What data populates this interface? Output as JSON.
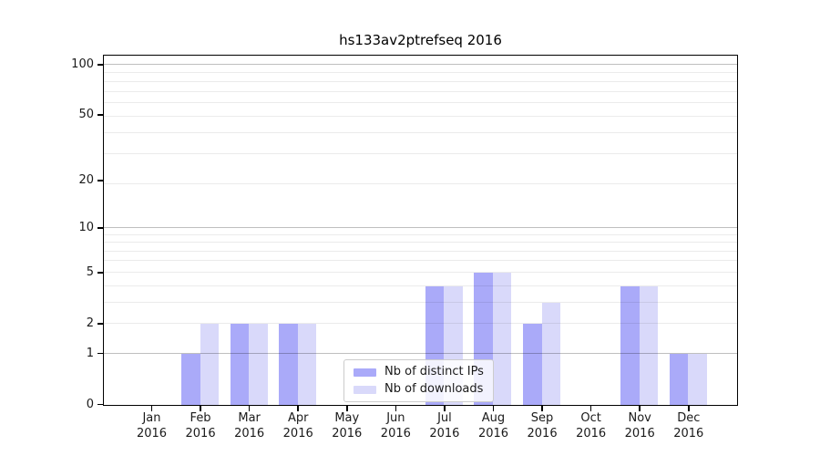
{
  "chart_data": {
    "type": "bar",
    "title": "hs133av2ptrefseq 2016",
    "categories": [
      "Jan",
      "Feb",
      "Mar",
      "Apr",
      "May",
      "Jun",
      "Jul",
      "Aug",
      "Sep",
      "Oct",
      "Nov",
      "Dec"
    ],
    "x_tick_year_line": "2016",
    "series": [
      {
        "name": "Nb of distinct IPs",
        "color": "#aaaaf9",
        "values": [
          0,
          1,
          2,
          2,
          0,
          0,
          4,
          5,
          2,
          0,
          4,
          1
        ]
      },
      {
        "name": "Nb of downloads",
        "color": "#d9d9fa",
        "values": [
          0,
          2,
          2,
          2,
          0,
          0,
          4,
          5,
          3,
          0,
          4,
          1
        ]
      }
    ],
    "y_ticks": [
      100,
      50,
      20,
      10,
      5,
      2,
      1,
      0
    ],
    "ylim": [
      0,
      100
    ],
    "y_scale": "log10(1+y)",
    "grid": {
      "major": [
        1,
        10,
        100
      ],
      "minor": [
        2,
        3,
        4,
        5,
        6,
        7,
        8,
        9,
        19,
        29,
        39,
        49,
        59,
        69,
        79,
        89
      ]
    },
    "legend_position": "inside-lower-center"
  }
}
